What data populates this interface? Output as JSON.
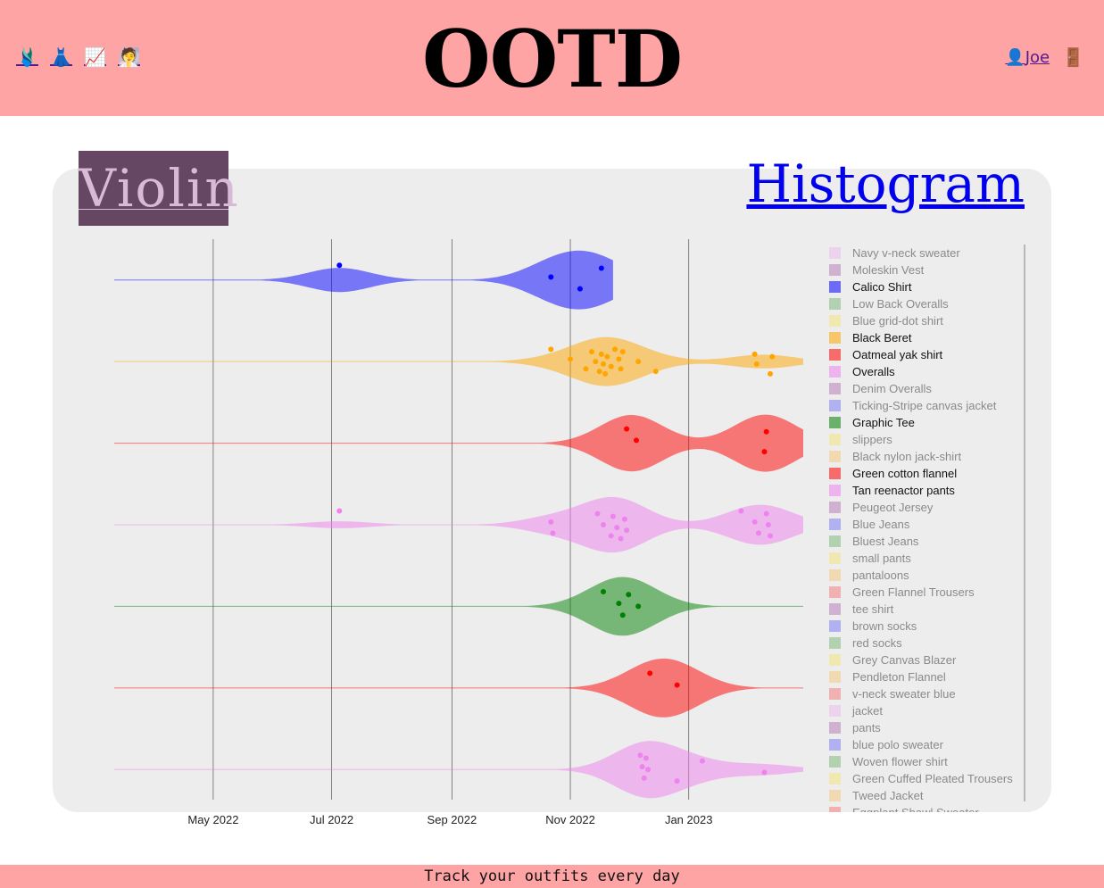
{
  "header": {
    "title": "OOTD",
    "nav": [
      {
        "icon": "hanger-icon",
        "glyph": "🩱"
      },
      {
        "icon": "dress-icon",
        "glyph": "👗"
      },
      {
        "icon": "chart-icon",
        "glyph": "📈"
      },
      {
        "icon": "person-icon",
        "glyph": "🧖"
      }
    ],
    "user_glyph": "👤",
    "user": "Joe",
    "logout_glyph": "🚪"
  },
  "tabs": {
    "violin": "Violin",
    "histogram": "Histogram"
  },
  "footer": {
    "text": "Track your outfits every day"
  },
  "chart_data": {
    "type": "violin",
    "xlim": [
      "2022-03-11",
      "2023-03-01"
    ],
    "x_ticks": [
      "May 2022",
      "Jul 2022",
      "Sep 2022",
      "Nov 2022",
      "Jan 2023"
    ],
    "grid": true,
    "legend_placement": "right",
    "series": [
      {
        "name": "Calico Shirt",
        "color": "#0000ff",
        "dates": [
          "2022-07-05",
          "2022-10-22",
          "2022-11-06",
          "2022-11-17"
        ],
        "span": [
          "2022-03-11",
          "2022-11-23"
        ],
        "peak": "2022-11-01",
        "width": 0.72
      },
      {
        "name": "Black Beret",
        "color": "#ffa500",
        "dates": [
          "2022-10-22",
          "2022-11-01",
          "2022-11-09",
          "2022-11-12",
          "2022-11-14",
          "2022-11-16",
          "2022-11-17",
          "2022-11-18",
          "2022-11-19",
          "2022-11-20",
          "2022-11-22",
          "2022-11-24",
          "2022-11-26",
          "2022-11-27",
          "2022-11-28",
          "2022-12-06",
          "2022-12-15",
          "2023-02-04",
          "2023-02-05",
          "2023-02-12",
          "2023-02-13"
        ],
        "span": [
          "2022-03-11",
          "2023-03-01"
        ],
        "peak": "2022-11-22",
        "width": 0.6
      },
      {
        "name": "Oatmeal yak shirt",
        "color": "#ff0000",
        "dates": [
          "2022-11-30",
          "2022-12-05",
          "2023-02-09",
          "2023-02-10"
        ],
        "span": [
          "2022-03-11",
          "2023-03-01"
        ],
        "peak": "2023-01-30",
        "width": 0.7
      },
      {
        "name": "Overalls",
        "color": "#ee82ee",
        "dates": [
          "2022-07-05",
          "2022-10-22",
          "2022-10-23",
          "2022-11-15",
          "2022-11-18",
          "2022-11-22",
          "2022-11-23",
          "2022-11-25",
          "2022-11-27",
          "2022-11-29",
          "2022-11-30",
          "2023-01-28",
          "2023-02-04",
          "2023-02-06",
          "2023-02-10",
          "2023-02-11",
          "2023-02-12"
        ],
        "span": [
          "2022-03-11",
          "2023-03-01"
        ],
        "peak": "2022-11-25",
        "width": 0.68
      },
      {
        "name": "Graphic Tee",
        "color": "#008000",
        "dates": [
          "2022-11-18",
          "2022-11-26",
          "2022-11-28",
          "2022-12-01",
          "2022-12-06"
        ],
        "span": [
          "2022-03-11",
          "2023-03-01"
        ],
        "peak": "2022-11-29",
        "width": 0.72
      },
      {
        "name": "Green cotton flannel",
        "color": "#ff0000",
        "dates": [
          "2022-12-12",
          "2022-12-26"
        ],
        "span": [
          "2022-03-11",
          "2023-03-01"
        ],
        "peak": "2022-12-19",
        "width": 0.72
      },
      {
        "name": "Tan reenactor pants",
        "color": "#ee82ee",
        "dates": [
          "2022-12-07",
          "2022-12-08",
          "2022-12-09",
          "2022-12-10",
          "2022-12-11",
          "2022-12-26",
          "2023-01-08",
          "2023-02-09"
        ],
        "span": [
          "2022-03-11",
          "2023-03-01"
        ],
        "peak": "2022-12-14",
        "width": 0.7
      }
    ],
    "legend": [
      {
        "name": "Navy v-neck sweater",
        "color": "#ee82ee",
        "visible": false
      },
      {
        "name": "Moleskin Vest",
        "color": "#800080",
        "visible": false
      },
      {
        "name": "Calico Shirt",
        "color": "#0000ff",
        "visible": true
      },
      {
        "name": "Low Back Overalls",
        "color": "#008000",
        "visible": false
      },
      {
        "name": "Blue grid-dot shirt",
        "color": "#ffd700",
        "visible": false
      },
      {
        "name": "Black Beret",
        "color": "#ffa500",
        "visible": true
      },
      {
        "name": "Oatmeal yak shirt",
        "color": "#ff0000",
        "visible": true
      },
      {
        "name": "Overalls",
        "color": "#ee82ee",
        "visible": true
      },
      {
        "name": "Denim Overalls",
        "color": "#800080",
        "visible": false
      },
      {
        "name": "Ticking-Stripe canvas jacket",
        "color": "#0000ff",
        "visible": false
      },
      {
        "name": "Graphic Tee",
        "color": "#008000",
        "visible": true
      },
      {
        "name": "slippers",
        "color": "#ffd700",
        "visible": false
      },
      {
        "name": "Black nylon jack-shirt",
        "color": "#ffa500",
        "visible": false
      },
      {
        "name": "Green cotton flannel",
        "color": "#ff0000",
        "visible": true
      },
      {
        "name": "Tan reenactor pants",
        "color": "#ee82ee",
        "visible": true
      },
      {
        "name": "Peugeot Jersey",
        "color": "#800080",
        "visible": false
      },
      {
        "name": "Blue Jeans",
        "color": "#0000ff",
        "visible": false
      },
      {
        "name": "Bluest Jeans",
        "color": "#008000",
        "visible": false
      },
      {
        "name": "small pants",
        "color": "#ffd700",
        "visible": false
      },
      {
        "name": "pantaloons",
        "color": "#ffa500",
        "visible": false
      },
      {
        "name": "Green Flannel Trousers",
        "color": "#ff0000",
        "visible": false
      },
      {
        "name": "tee shirt",
        "color": "#800080",
        "visible": false
      },
      {
        "name": "brown socks",
        "color": "#0000ff",
        "visible": false
      },
      {
        "name": "red socks",
        "color": "#008000",
        "visible": false
      },
      {
        "name": "Grey Canvas Blazer",
        "color": "#ffd700",
        "visible": false
      },
      {
        "name": "Pendleton Flannel",
        "color": "#ffa500",
        "visible": false
      },
      {
        "name": "v-neck sweater blue",
        "color": "#ff0000",
        "visible": false
      },
      {
        "name": "jacket",
        "color": "#ee82ee",
        "visible": false
      },
      {
        "name": "pants",
        "color": "#800080",
        "visible": false
      },
      {
        "name": "blue polo sweater",
        "color": "#0000ff",
        "visible": false
      },
      {
        "name": "Woven flower shirt",
        "color": "#008000",
        "visible": false
      },
      {
        "name": "Green Cuffed Pleated Trousers",
        "color": "#ffd700",
        "visible": false
      },
      {
        "name": "Tweed Jacket",
        "color": "#ffa500",
        "visible": false
      },
      {
        "name": "Eggplant Shawl Sweater",
        "color": "#ff0000",
        "visible": false
      }
    ]
  }
}
